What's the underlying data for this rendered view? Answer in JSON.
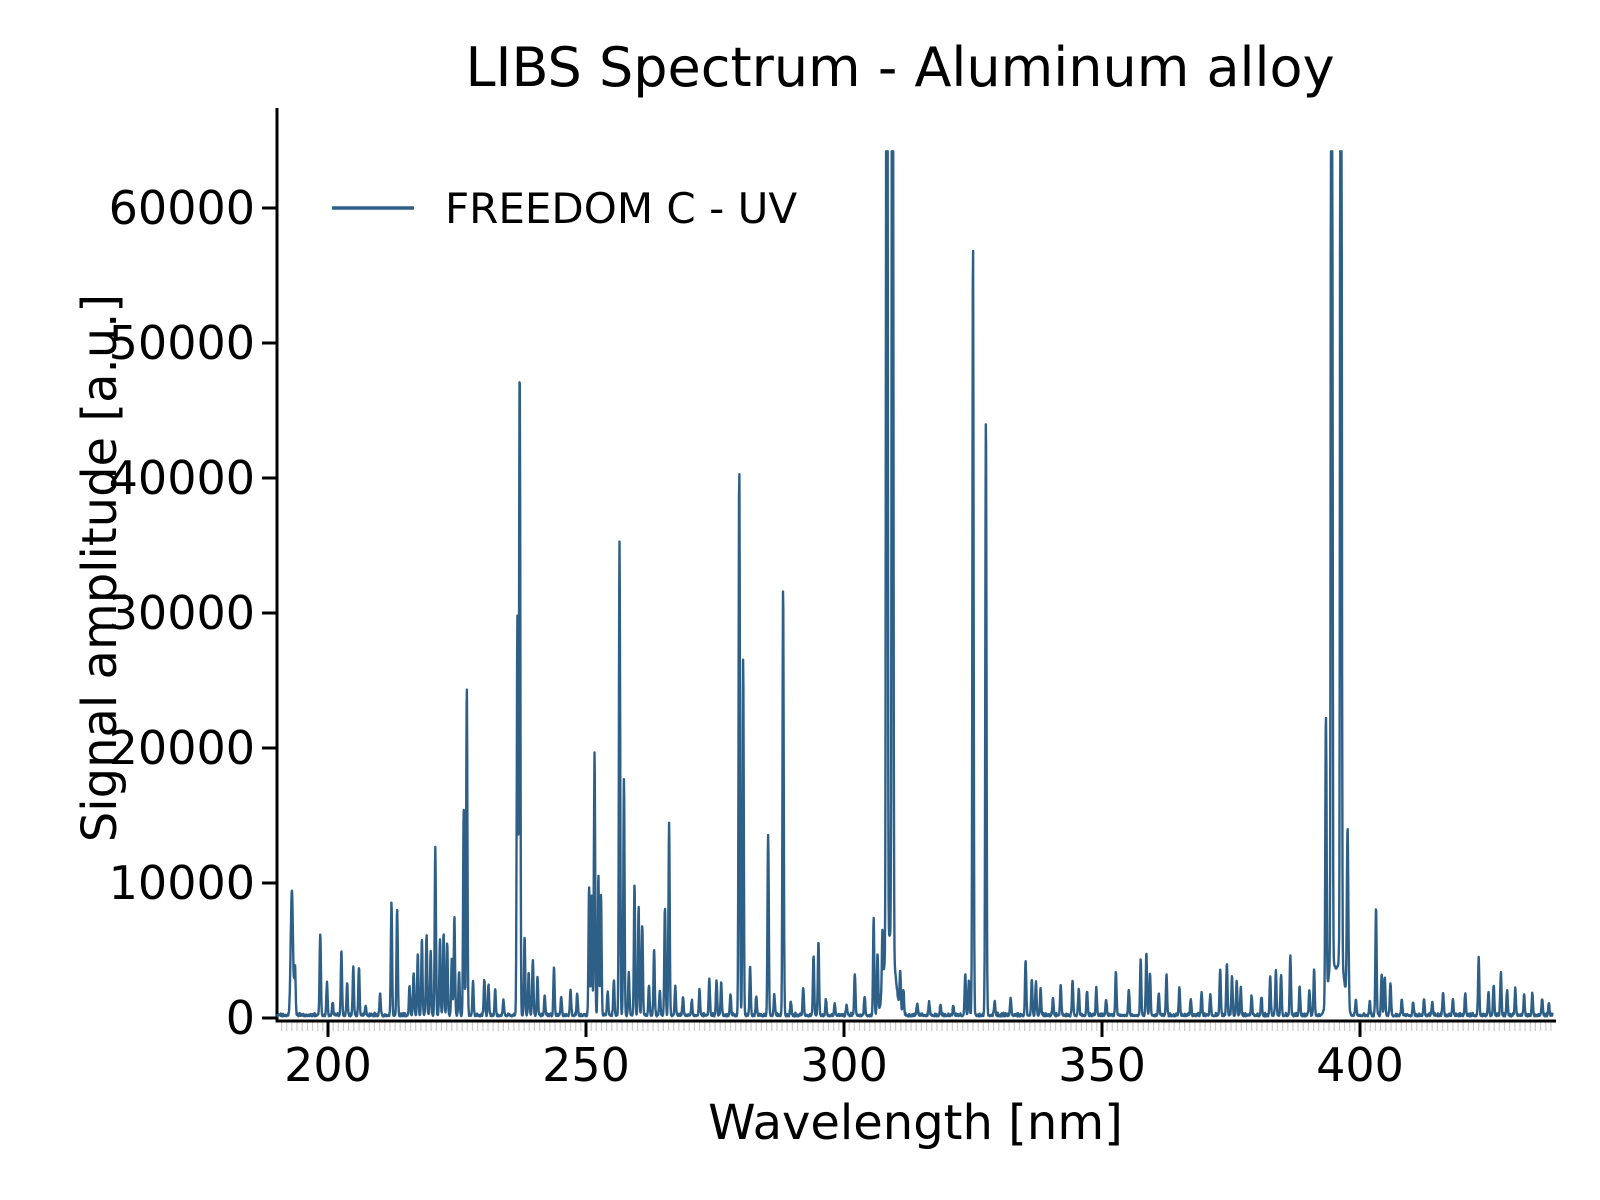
{
  "figure": {
    "background": "#ffffff",
    "text_color": "#000000"
  },
  "chart_data": {
    "type": "line",
    "title": "LIBS Spectrum - Aluminum alloy",
    "xlabel": "Wavelength [nm]",
    "ylabel": "Signal amplitude [a.u.]",
    "legend": [
      "FREEDOM C - UV"
    ],
    "legend_position": "upper left",
    "grid": false,
    "line_color": "#2e5f87",
    "spine_color": "#000000",
    "minor_tick_color": "#cccccc",
    "x_range": [
      190.2,
      437.3
    ],
    "x_ticks": [
      200,
      250,
      300,
      350,
      400
    ],
    "y_ticks": [
      0,
      10000,
      20000,
      30000,
      40000,
      50000,
      60000
    ],
    "ylim": [
      0,
      67000
    ],
    "saturation_level": 64200,
    "baseline_noise": [
      120,
      400
    ],
    "default_peak_sigma_nm": 0.12,
    "peaks_format": "[wavelength_nm, amplitude_au, optional_sigma_nm]",
    "peaks": [
      [
        193.0,
        9300,
        0.22
      ],
      [
        193.6,
        3600
      ],
      [
        198.5,
        6100
      ],
      [
        199.8,
        2400
      ],
      [
        200.9,
        900
      ],
      [
        202.6,
        4800
      ],
      [
        203.7,
        2400
      ],
      [
        204.9,
        3600
      ],
      [
        206.0,
        3500
      ],
      [
        207.3,
        700
      ],
      [
        210.1,
        1600
      ],
      [
        212.3,
        8300
      ],
      [
        213.4,
        7900
      ],
      [
        215.8,
        2200
      ],
      [
        216.6,
        3100
      ],
      [
        217.4,
        4600
      ],
      [
        218.2,
        5700
      ],
      [
        219.1,
        5900
      ],
      [
        219.9,
        4700
      ],
      [
        220.8,
        12400
      ],
      [
        221.7,
        5700
      ],
      [
        222.4,
        6100
      ],
      [
        223.1,
        5400
      ],
      [
        224.0,
        4200
      ],
      [
        224.5,
        7300
      ],
      [
        225.4,
        3200
      ],
      [
        226.3,
        15300
      ],
      [
        226.9,
        24300
      ],
      [
        228.1,
        2500
      ],
      [
        230.3,
        2700
      ],
      [
        231.1,
        2300
      ],
      [
        232.4,
        1900
      ],
      [
        234.0,
        1100
      ],
      [
        236.7,
        29500
      ],
      [
        237.15,
        48300
      ],
      [
        238.1,
        5800
      ],
      [
        238.9,
        3200
      ],
      [
        239.7,
        4100
      ],
      [
        240.6,
        2900
      ],
      [
        242.0,
        1500
      ],
      [
        243.8,
        3600
      ],
      [
        245.2,
        1400
      ],
      [
        247.0,
        1900
      ],
      [
        248.3,
        1600
      ],
      [
        250.6,
        9600
      ],
      [
        251.1,
        8900
      ],
      [
        251.65,
        19500
      ],
      [
        252.4,
        10400
      ],
      [
        252.9,
        8800
      ],
      [
        254.2,
        1800
      ],
      [
        255.4,
        2600
      ],
      [
        256.5,
        35100
      ],
      [
        257.35,
        17500
      ],
      [
        258.3,
        3200
      ],
      [
        259.4,
        9700
      ],
      [
        260.2,
        8000
      ],
      [
        260.9,
        6700
      ],
      [
        262.2,
        2200
      ],
      [
        263.2,
        4900
      ],
      [
        264.3,
        1800
      ],
      [
        265.3,
        8000
      ],
      [
        266.1,
        14200
      ],
      [
        267.3,
        2100
      ],
      [
        268.8,
        1400
      ],
      [
        270.5,
        1100
      ],
      [
        272.0,
        1900
      ],
      [
        273.9,
        2700
      ],
      [
        275.3,
        2500
      ],
      [
        276.2,
        2300
      ],
      [
        278.0,
        1600
      ],
      [
        279.7,
        40700
      ],
      [
        280.45,
        26500
      ],
      [
        281.8,
        3700
      ],
      [
        283.0,
        1400
      ],
      [
        285.3,
        13400
      ],
      [
        286.5,
        1500
      ],
      [
        288.2,
        31800
      ],
      [
        289.7,
        1000
      ],
      [
        292.1,
        2100
      ],
      [
        294.1,
        4400
      ],
      [
        295.05,
        5500
      ],
      [
        296.5,
        1100
      ],
      [
        298.2,
        900
      ],
      [
        300.5,
        800
      ],
      [
        302.1,
        3100
      ],
      [
        304.0,
        1400
      ],
      [
        305.75,
        7200
      ],
      [
        306.5,
        4400
      ],
      [
        307.45,
        4400
      ],
      [
        308.3,
        64200
      ],
      [
        309.4,
        64200
      ],
      [
        310.9,
        2900
      ],
      [
        311.5,
        1900
      ],
      [
        314.2,
        900
      ],
      [
        316.5,
        1000
      ],
      [
        318.7,
        800
      ],
      [
        321.2,
        700
      ],
      [
        323.5,
        3100
      ],
      [
        324.2,
        2600
      ],
      [
        325.0,
        57400
      ],
      [
        327.5,
        44400
      ],
      [
        329.2,
        1100
      ],
      [
        332.3,
        1300
      ],
      [
        335.2,
        4100
      ],
      [
        336.4,
        2700
      ],
      [
        337.2,
        2400
      ],
      [
        338.1,
        2000
      ],
      [
        340.5,
        1300
      ],
      [
        342.0,
        2300
      ],
      [
        344.3,
        2600
      ],
      [
        345.5,
        2000
      ],
      [
        347.1,
        1800
      ],
      [
        348.9,
        2000
      ],
      [
        350.8,
        1200
      ],
      [
        352.7,
        3200
      ],
      [
        355.2,
        1900
      ],
      [
        357.5,
        4100
      ],
      [
        358.6,
        4600
      ],
      [
        359.3,
        3100
      ],
      [
        361.0,
        1700
      ],
      [
        362.5,
        3000
      ],
      [
        365.0,
        2100
      ],
      [
        367.2,
        1200
      ],
      [
        369.3,
        1700
      ],
      [
        371.0,
        1500
      ],
      [
        372.9,
        3400
      ],
      [
        374.2,
        3900
      ],
      [
        375.2,
        2900
      ],
      [
        376.1,
        2600
      ],
      [
        376.9,
        2000
      ],
      [
        379.0,
        1400
      ],
      [
        380.9,
        1300
      ],
      [
        382.6,
        2900
      ],
      [
        383.7,
        3400
      ],
      [
        384.7,
        3000
      ],
      [
        386.5,
        4400
      ],
      [
        388.3,
        2100
      ],
      [
        390.2,
        1800
      ],
      [
        391.1,
        3400
      ],
      [
        393.4,
        21100
      ],
      [
        394.5,
        64200
      ],
      [
        396.3,
        64200
      ],
      [
        397.6,
        13200,
        0.15
      ],
      [
        399.2,
        1200
      ],
      [
        401.9,
        1100
      ],
      [
        403.1,
        8000
      ],
      [
        404.2,
        3100
      ],
      [
        404.8,
        2800
      ],
      [
        405.9,
        2400
      ],
      [
        408.1,
        1200
      ],
      [
        410.3,
        1000
      ],
      [
        412.4,
        1200
      ],
      [
        414.0,
        1000
      ],
      [
        416.1,
        1700
      ],
      [
        418.0,
        1200
      ],
      [
        420.4,
        1600
      ],
      [
        423.0,
        4300
      ],
      [
        424.9,
        1700
      ],
      [
        425.9,
        2200
      ],
      [
        427.3,
        3100
      ],
      [
        428.5,
        1800
      ],
      [
        430.1,
        2000
      ],
      [
        431.8,
        1400
      ],
      [
        433.4,
        1600
      ],
      [
        435.3,
        1200
      ],
      [
        436.6,
        900
      ]
    ]
  }
}
